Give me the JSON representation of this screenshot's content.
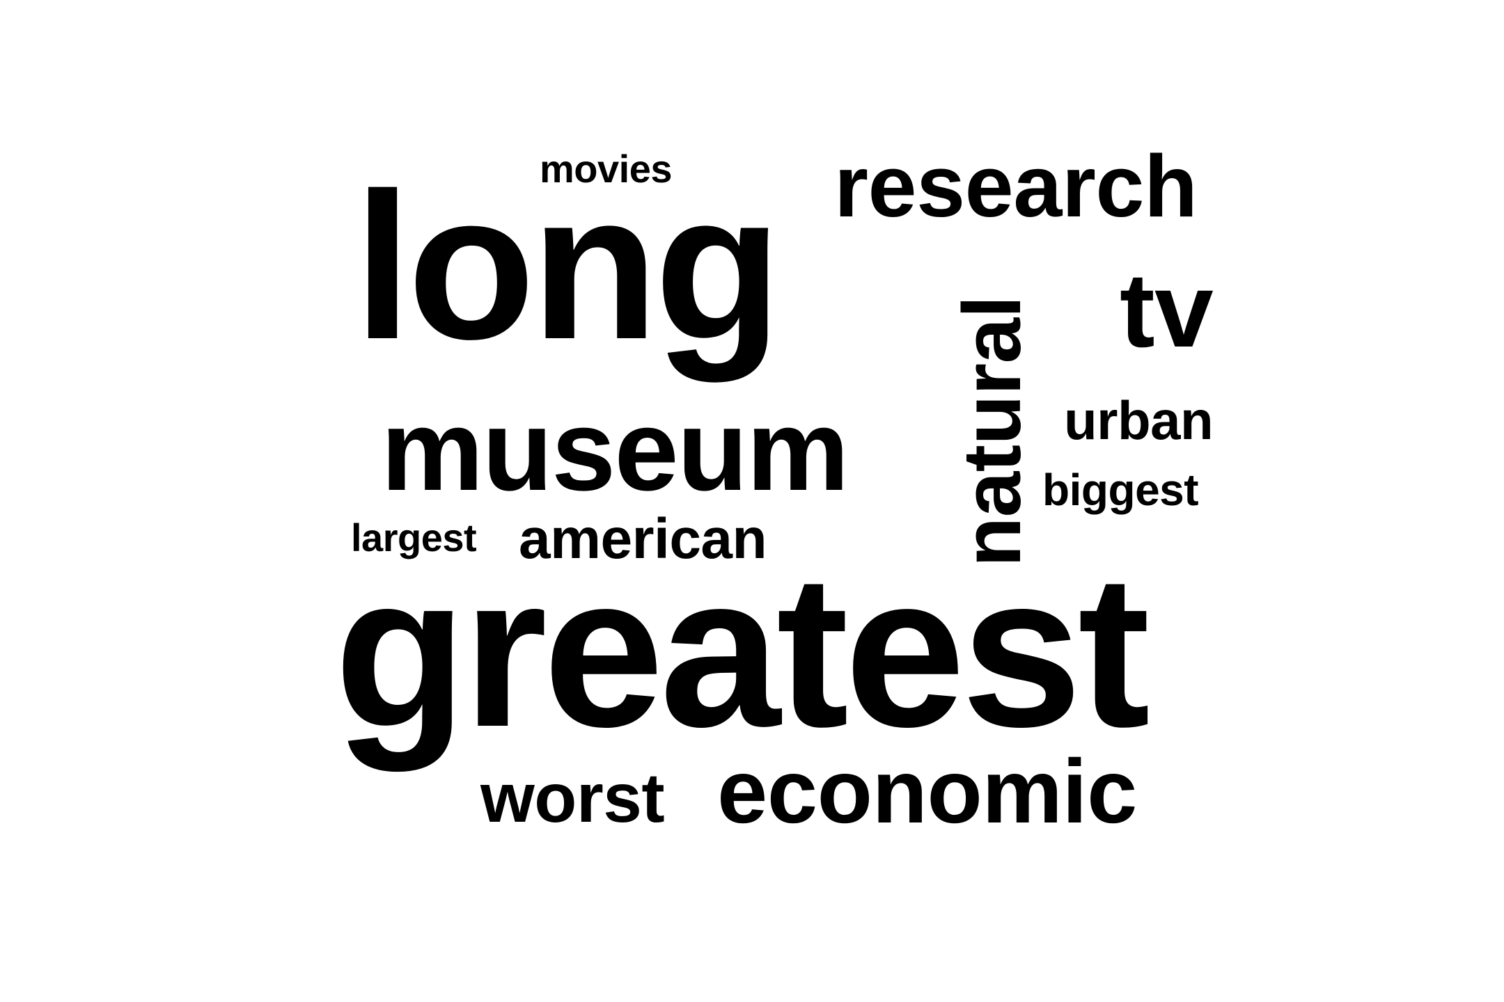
{
  "word_cloud": {
    "text_color": "#000000",
    "background_color": "#ffffff",
    "words": {
      "movies": "movies",
      "research": "research",
      "long": "long",
      "tv": "tv",
      "natural": "natural",
      "urban": "urban",
      "museum": "museum",
      "biggest": "biggest",
      "largest": "largest",
      "american": "american",
      "greatest": "greatest",
      "worst": "worst",
      "economic": "economic"
    }
  }
}
